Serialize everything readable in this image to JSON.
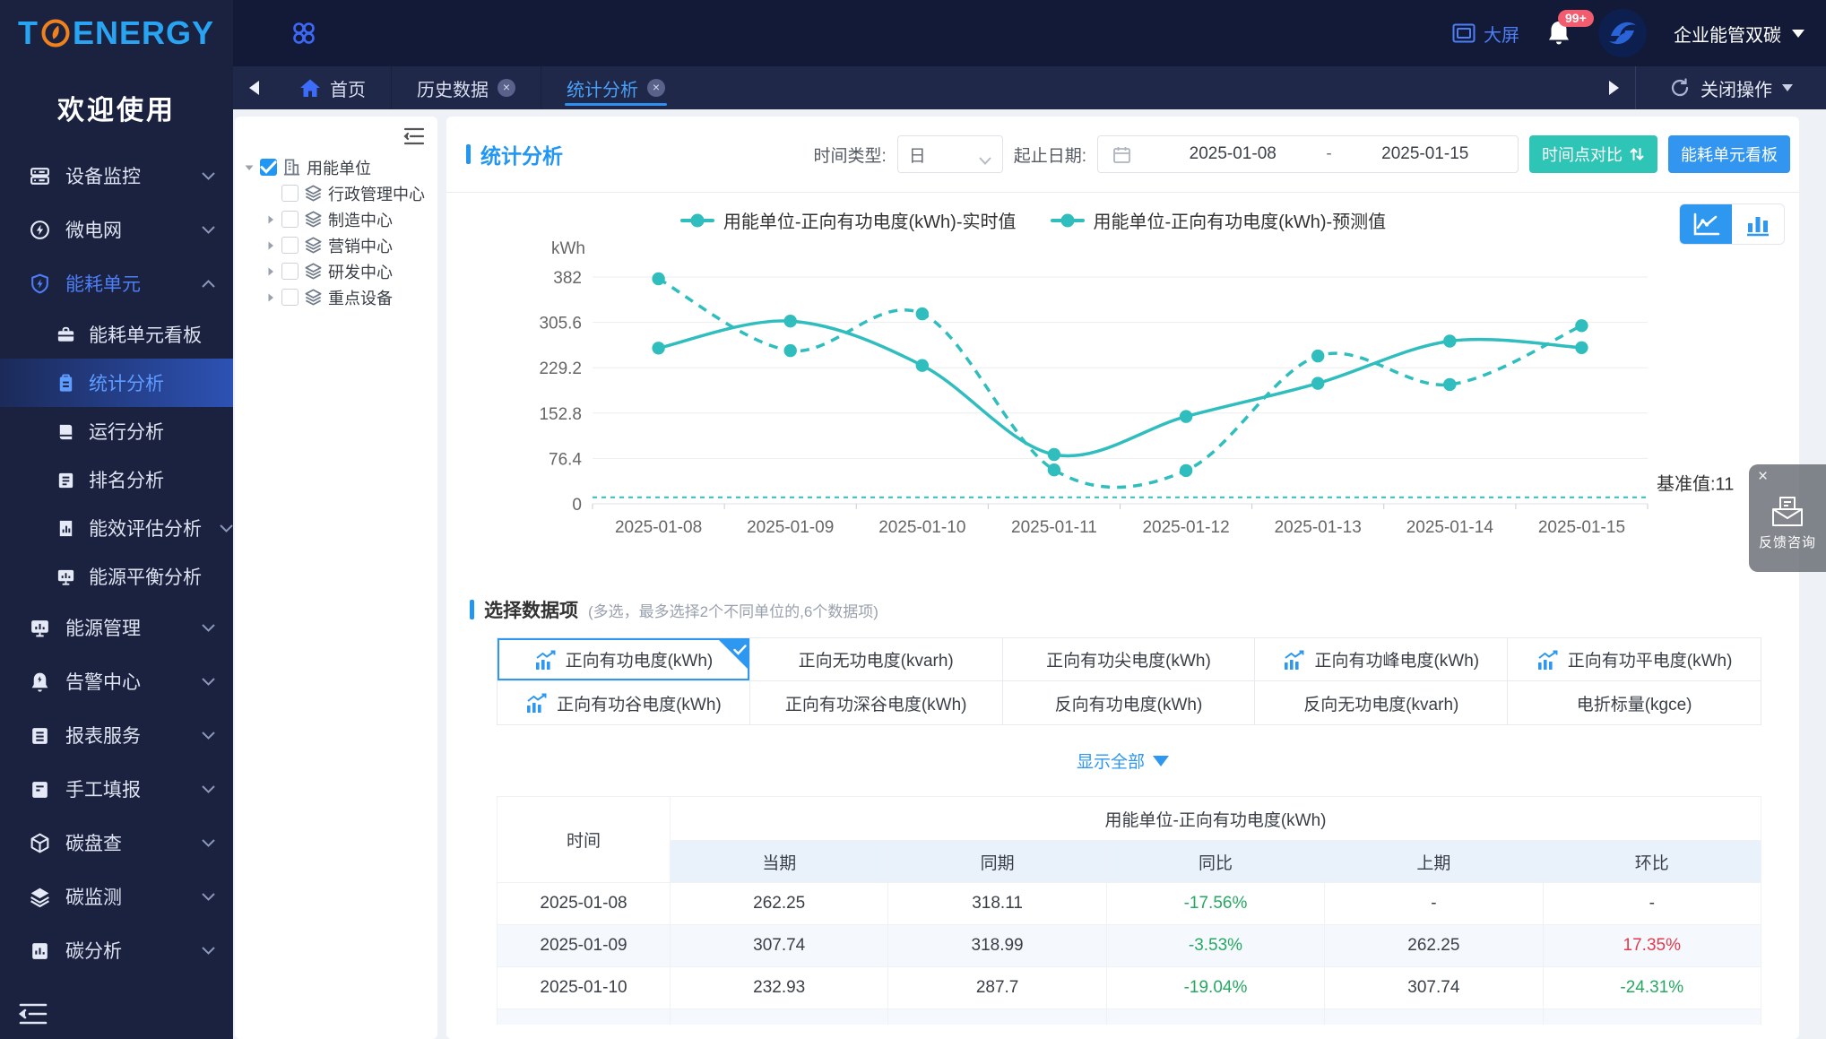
{
  "brand": {
    "t": "T",
    "rest": "ENERGY",
    "welcome": "欢迎使用"
  },
  "sidebar": {
    "items": [
      {
        "label": "设备监控",
        "icon": "device-monitor-icon",
        "expandable": true
      },
      {
        "label": "微电网",
        "icon": "microgrid-icon",
        "expandable": true
      },
      {
        "label": "能耗单元",
        "icon": "energy-unit-icon",
        "expandable": true,
        "expanded": true,
        "active": true,
        "children": [
          {
            "label": "能耗单元看板",
            "icon": "kanban-icon"
          },
          {
            "label": "统计分析",
            "icon": "clipboard-icon",
            "active": true
          },
          {
            "label": "运行分析",
            "icon": "book-icon"
          },
          {
            "label": "排名分析",
            "icon": "ranking-icon"
          },
          {
            "label": "能效评估分析",
            "icon": "efficiency-icon",
            "expandable": true
          },
          {
            "label": "能源平衡分析",
            "icon": "balance-icon"
          }
        ]
      },
      {
        "label": "能源管理",
        "icon": "monitor-chart-icon",
        "expandable": true
      },
      {
        "label": "告警中心",
        "icon": "alarm-icon",
        "expandable": true
      },
      {
        "label": "报表服务",
        "icon": "report-icon",
        "expandable": true
      },
      {
        "label": "手工填报",
        "icon": "manual-icon",
        "expandable": true
      },
      {
        "label": "碳盘查",
        "icon": "carbon-box-icon",
        "expandable": true
      },
      {
        "label": "碳监测",
        "icon": "layers-icon",
        "expandable": true
      },
      {
        "label": "碳分析",
        "icon": "carbon-analysis-icon",
        "expandable": true
      }
    ]
  },
  "header": {
    "big_screen": "大屏",
    "badge": "99+",
    "org": "企业能管双碳"
  },
  "tabs": {
    "items": [
      {
        "label": "首页",
        "home": true,
        "closable": false,
        "active": false
      },
      {
        "label": "历史数据",
        "closable": true,
        "active": false
      },
      {
        "label": "统计分析",
        "closable": true,
        "active": true
      }
    ],
    "close_ops": "关闭操作"
  },
  "tree": {
    "root": {
      "label": "用能单位",
      "checked": true
    },
    "children": [
      {
        "label": "行政管理中心",
        "arrow": false
      },
      {
        "label": "制造中心",
        "arrow": true
      },
      {
        "label": "营销中心",
        "arrow": true
      },
      {
        "label": "研发中心",
        "arrow": true
      },
      {
        "label": "重点设备",
        "arrow": true
      }
    ]
  },
  "panel": {
    "title": "统计分析",
    "time_type_label": "时间类型:",
    "time_type_value": "日",
    "date_label": "起止日期:",
    "date_start": "2025-01-08",
    "date_sep": "-",
    "date_end": "2025-01-15",
    "compare_btn": "时间点对比",
    "board_btn": "能耗单元看板"
  },
  "chart_data": {
    "type": "line",
    "unit": "kWh",
    "x": [
      "2025-01-08",
      "2025-01-09",
      "2025-01-10",
      "2025-01-11",
      "2025-01-12",
      "2025-01-13",
      "2025-01-14",
      "2025-01-15"
    ],
    "series": [
      {
        "name": "用能单位-正向有功电度(kWh)-实时值",
        "style": "solid",
        "values": [
          262.25,
          307.74,
          232.93,
          83,
          147,
          203,
          274,
          263
        ]
      },
      {
        "name": "用能单位-正向有功电度(kWh)-预测值",
        "style": "dashed",
        "values": [
          379,
          258,
          320,
          57,
          56,
          249,
          201,
          300
        ]
      }
    ],
    "baseline": {
      "label": "基准值:11",
      "value": 11
    },
    "ylim": [
      0,
      382
    ],
    "yticks": [
      0,
      76.4,
      152.8,
      229.2,
      305.6,
      382
    ],
    "color": "#2fbdbe",
    "legend_position": "top-center",
    "grid": true
  },
  "selector": {
    "title": "选择数据项",
    "hint": "(多选，最多选择2个不同单位的,6个数据项)",
    "show_all": "显示全部",
    "items": [
      {
        "label": "正向有功电度(kWh)",
        "icon": true,
        "selected": true
      },
      {
        "label": "正向无功电度(kvarh)",
        "icon": false
      },
      {
        "label": "正向有功尖电度(kWh)",
        "icon": false
      },
      {
        "label": "正向有功峰电度(kWh)",
        "icon": true
      },
      {
        "label": "正向有功平电度(kWh)",
        "icon": true
      },
      {
        "label": "正向有功谷电度(kWh)",
        "icon": true
      },
      {
        "label": "正向有功深谷电度(kWh)",
        "icon": false
      },
      {
        "label": "反向有功电度(kWh)",
        "icon": false
      },
      {
        "label": "反向无功电度(kvarh)",
        "icon": false
      },
      {
        "label": "电折标量(kgce)",
        "icon": false
      }
    ]
  },
  "table": {
    "time_header": "时间",
    "group_header": "用能单位-正向有功电度(kWh)",
    "columns": [
      "当期",
      "同期",
      "同比",
      "上期",
      "环比"
    ],
    "rows": [
      {
        "time": "2025-01-08",
        "cells": [
          {
            "v": "262.25"
          },
          {
            "v": "318.11"
          },
          {
            "v": "-17.56%",
            "c": "neg"
          },
          {
            "v": "-"
          },
          {
            "v": "-"
          }
        ]
      },
      {
        "time": "2025-01-09",
        "cells": [
          {
            "v": "307.74"
          },
          {
            "v": "318.99"
          },
          {
            "v": "-3.53%",
            "c": "neg"
          },
          {
            "v": "262.25"
          },
          {
            "v": "17.35%",
            "c": "pos"
          }
        ]
      },
      {
        "time": "2025-01-10",
        "cells": [
          {
            "v": "232.93"
          },
          {
            "v": "287.7"
          },
          {
            "v": "-19.04%",
            "c": "neg"
          },
          {
            "v": "307.74"
          },
          {
            "v": "-24.31%",
            "c": "neg"
          }
        ]
      }
    ]
  },
  "feedback": {
    "label": "反馈咨询"
  }
}
